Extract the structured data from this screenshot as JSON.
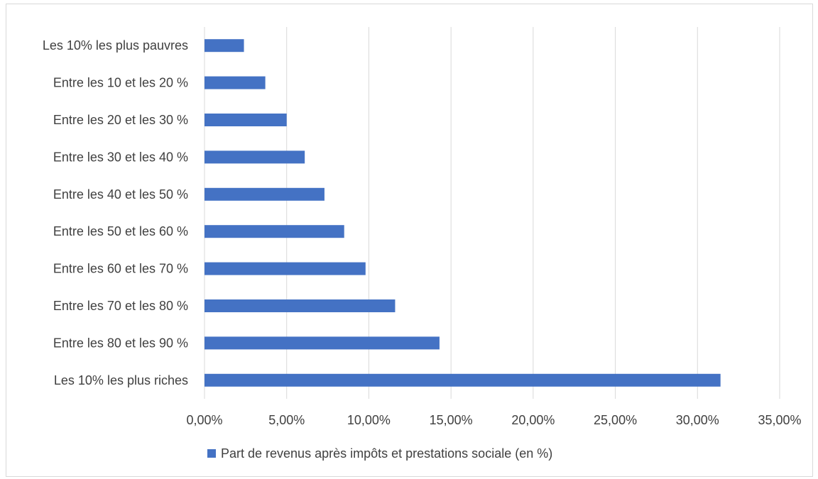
{
  "chart_data": {
    "type": "bar",
    "orientation": "horizontal",
    "categories": [
      "Les 10% les plus pauvres",
      "Entre les 10 et les 20 %",
      "Entre les 20 et les 30 %",
      "Entre les 30 et les 40 %",
      "Entre les 40 et les 50 %",
      "Entre les 50 et les 60 %",
      "Entre les 60 et les 70 %",
      "Entre les 70 et les 80 %",
      "Entre les 80 et les 90 %",
      "Les 10% les plus riches"
    ],
    "series": [
      {
        "name": "Part de revenus après impôts et prestations sociale (en %)",
        "color": "#4472c4",
        "values": [
          2.4,
          3.7,
          5.0,
          6.1,
          7.3,
          8.5,
          9.8,
          11.6,
          14.3,
          31.4
        ]
      }
    ],
    "xlim": [
      0,
      35
    ],
    "xticks": [
      0,
      5,
      10,
      15,
      20,
      25,
      30,
      35
    ],
    "xtick_labels": [
      "0,00%",
      "5,00%",
      "10,00%",
      "15,00%",
      "20,00%",
      "25,00%",
      "30,00%",
      "35,00%"
    ],
    "grid": "vertical",
    "legend_position": "bottom"
  }
}
